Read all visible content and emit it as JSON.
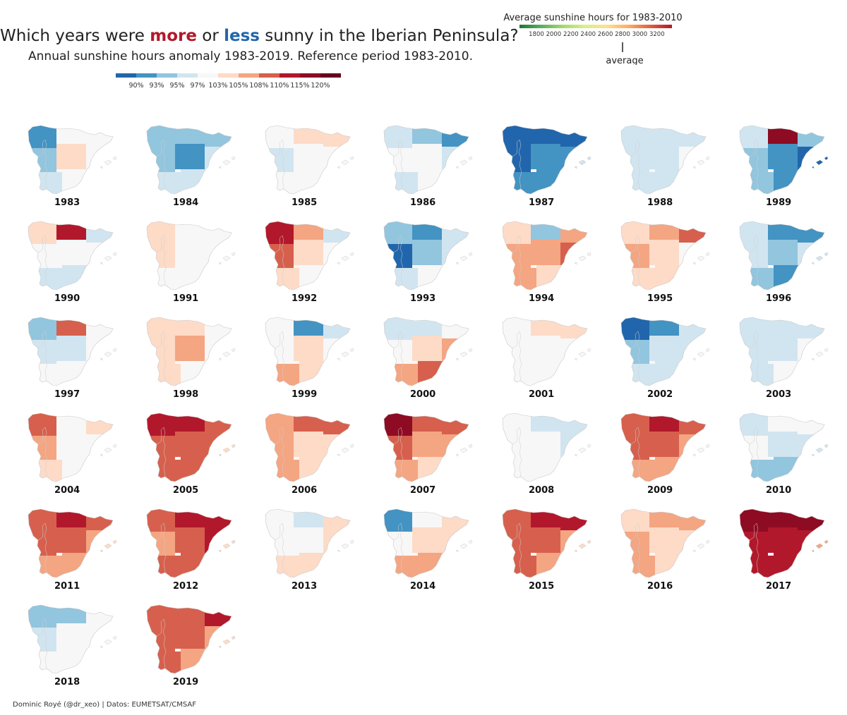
{
  "title": {
    "part1": "Which years were ",
    "more": "more",
    "part2": " or ",
    "less": "less",
    "part3": " sunny in the Iberian Peninsula?"
  },
  "subtitle": "Annual sunshine hours anomaly 1983-2019. Reference period 1983-2010.",
  "anomaly_legend": {
    "colors": [
      "#2166ac",
      "#4393c3",
      "#92c5de",
      "#d1e5f0",
      "#f7f7f7",
      "#fddbc7",
      "#f4a582",
      "#d6604d",
      "#b2182b",
      "#8e0b24",
      "#67001f"
    ],
    "labels": [
      "90%",
      "93%",
      "95%",
      "97%",
      "103%",
      "105%",
      "108%",
      "110%",
      "115%",
      "120%"
    ]
  },
  "sunshine_legend": {
    "title": "Average sunshine hours for 1983-2010",
    "ticks": [
      "1800",
      "2000",
      "2200",
      "2400",
      "2600",
      "2800",
      "3000",
      "3200"
    ],
    "average_label": "average",
    "colors": [
      "#1a7837",
      "#5aae61",
      "#a6d96a",
      "#d9ef8b",
      "#fee08b",
      "#fdae61",
      "#e0603d",
      "#b2182b"
    ]
  },
  "years": [
    {
      "year": "1983",
      "values": [
        -0.8,
        -0.1,
        0.0,
        -0.5,
        0.3,
        0.1,
        -0.3,
        0.1,
        0.0
      ]
    },
    {
      "year": "1984",
      "values": [
        -0.5,
        -0.6,
        -0.5,
        -0.5,
        -0.8,
        -0.4,
        -0.3,
        -0.4,
        -0.1
      ]
    },
    {
      "year": "1985",
      "values": [
        0.0,
        0.3,
        0.2,
        -0.2,
        0.0,
        0.0,
        -0.1,
        0.0,
        0.0
      ]
    },
    {
      "year": "1986",
      "values": [
        -0.3,
        -0.6,
        -0.7,
        -0.1,
        0.0,
        -0.4,
        -0.2,
        0.0,
        0.0
      ]
    },
    {
      "year": "1987",
      "values": [
        -1.0,
        -1.0,
        -1.1,
        -1.0,
        -0.9,
        -0.8,
        -0.8,
        -0.7,
        -0.4
      ]
    },
    {
      "year": "1988",
      "values": [
        -0.2,
        -0.3,
        -0.4,
        -0.3,
        -0.2,
        0.0,
        -0.3,
        -0.2,
        0.0
      ]
    },
    {
      "year": "1989",
      "values": [
        -0.3,
        1.2,
        -0.5,
        -0.6,
        -0.8,
        -1.0,
        -0.5,
        -0.8,
        -1.1
      ]
    },
    {
      "year": "1990",
      "values": [
        0.3,
        1.0,
        -0.2,
        0.0,
        0.0,
        -0.1,
        -0.3,
        -0.4,
        0.0
      ]
    },
    {
      "year": "1991",
      "values": [
        0.2,
        0.1,
        0.0,
        0.2,
        0.1,
        0.0,
        0.1,
        0.0,
        0.0
      ]
    },
    {
      "year": "1992",
      "values": [
        1.0,
        0.5,
        -0.4,
        0.6,
        0.2,
        -0.1,
        0.3,
        0.1,
        0.0
      ]
    },
    {
      "year": "1993",
      "values": [
        -0.6,
        -0.9,
        -0.3,
        -1.0,
        -0.5,
        -0.2,
        -0.2,
        -0.1,
        0.0
      ]
    },
    {
      "year": "1994",
      "values": [
        0.2,
        -0.5,
        0.4,
        0.4,
        0.5,
        0.8,
        0.4,
        0.3,
        0.0
      ]
    },
    {
      "year": "1995",
      "values": [
        0.2,
        0.4,
        0.6,
        0.4,
        0.3,
        0.1,
        0.3,
        0.2,
        0.0
      ]
    },
    {
      "year": "1996",
      "values": [
        -0.2,
        -0.8,
        -0.9,
        -0.3,
        -0.5,
        -0.4,
        -0.6,
        -0.7,
        -0.3
      ]
    },
    {
      "year": "1997",
      "values": [
        -0.6,
        0.8,
        -0.1,
        -0.4,
        -0.2,
        0.0,
        -0.1,
        0.0,
        0.0
      ]
    },
    {
      "year": "1998",
      "values": [
        0.3,
        0.3,
        0.1,
        0.3,
        0.4,
        0.1,
        0.2,
        0.1,
        0.0
      ]
    },
    {
      "year": "1999",
      "values": [
        0.0,
        -0.8,
        -0.3,
        0.1,
        0.3,
        0.1,
        0.4,
        0.2,
        0.0
      ]
    },
    {
      "year": "2000",
      "values": [
        -0.3,
        -0.2,
        0.0,
        0.0,
        0.3,
        0.5,
        0.5,
        0.6,
        0.0
      ]
    },
    {
      "year": "2001",
      "values": [
        0.0,
        0.3,
        0.2,
        0.0,
        0.1,
        0.1,
        0.0,
        0.1,
        0.0
      ]
    },
    {
      "year": "2002",
      "values": [
        -1.2,
        -0.9,
        -0.4,
        -0.6,
        -0.4,
        -0.2,
        -0.3,
        -0.2,
        0.0
      ]
    },
    {
      "year": "2003",
      "values": [
        -0.3,
        -0.3,
        -0.3,
        -0.2,
        -0.2,
        -0.1,
        -0.2,
        -0.1,
        0.0
      ]
    },
    {
      "year": "2004",
      "values": [
        0.6,
        -0.1,
        0.3,
        0.4,
        0.1,
        0.0,
        0.3,
        0.1,
        0.0
      ]
    },
    {
      "year": "2005",
      "values": [
        1.0,
        0.9,
        0.8,
        0.8,
        0.7,
        0.6,
        0.6,
        0.6,
        0.3
      ]
    },
    {
      "year": "2006",
      "values": [
        0.5,
        0.6,
        0.8,
        0.4,
        0.3,
        0.3,
        0.4,
        0.3,
        0.0
      ]
    },
    {
      "year": "2007",
      "values": [
        1.2,
        0.7,
        0.6,
        0.6,
        0.5,
        0.4,
        0.5,
        0.3,
        0.0
      ]
    },
    {
      "year": "2008",
      "values": [
        -0.1,
        -0.2,
        -0.3,
        0.0,
        -0.1,
        -0.4,
        0.0,
        0.0,
        0.0
      ]
    },
    {
      "year": "2009",
      "values": [
        0.6,
        0.9,
        0.6,
        0.7,
        0.6,
        0.4,
        0.5,
        0.4,
        0.0
      ]
    },
    {
      "year": "2010",
      "values": [
        -0.3,
        0.0,
        -0.1,
        -0.1,
        -0.3,
        -0.4,
        -0.5,
        -0.6,
        -0.2
      ]
    },
    {
      "year": "2011",
      "values": [
        0.8,
        0.9,
        0.8,
        0.6,
        0.6,
        0.4,
        0.5,
        0.4,
        0.2
      ]
    },
    {
      "year": "2012",
      "values": [
        0.6,
        0.9,
        1.0,
        0.4,
        0.6,
        0.9,
        0.6,
        0.8,
        0.3
      ]
    },
    {
      "year": "2013",
      "values": [
        0.1,
        -0.3,
        0.2,
        0.1,
        0.0,
        0.2,
        0.3,
        0.3,
        0.0
      ]
    },
    {
      "year": "2014",
      "values": [
        -0.7,
        0.0,
        0.3,
        0.0,
        0.2,
        0.3,
        0.4,
        0.4,
        0.0
      ]
    },
    {
      "year": "2015",
      "values": [
        0.6,
        0.9,
        1.0,
        0.7,
        0.6,
        0.5,
        0.6,
        0.5,
        0.2
      ]
    },
    {
      "year": "2016",
      "values": [
        0.2,
        0.4,
        0.4,
        0.4,
        0.2,
        0.2,
        0.4,
        0.3,
        0.0
      ]
    },
    {
      "year": "2017",
      "values": [
        1.2,
        1.2,
        1.1,
        1.0,
        1.0,
        0.9,
        0.9,
        0.9,
        0.5
      ]
    },
    {
      "year": "2018",
      "values": [
        -0.6,
        -0.5,
        -0.1,
        -0.2,
        -0.1,
        0.0,
        -0.1,
        0.0,
        0.0
      ]
    },
    {
      "year": "2019",
      "values": [
        0.6,
        0.8,
        0.9,
        0.7,
        0.6,
        0.5,
        0.6,
        0.5,
        0.2
      ]
    }
  ],
  "source": "Dominic Royé (@dr_xeo) | Datos: EUMETSAT/CMSAF"
}
